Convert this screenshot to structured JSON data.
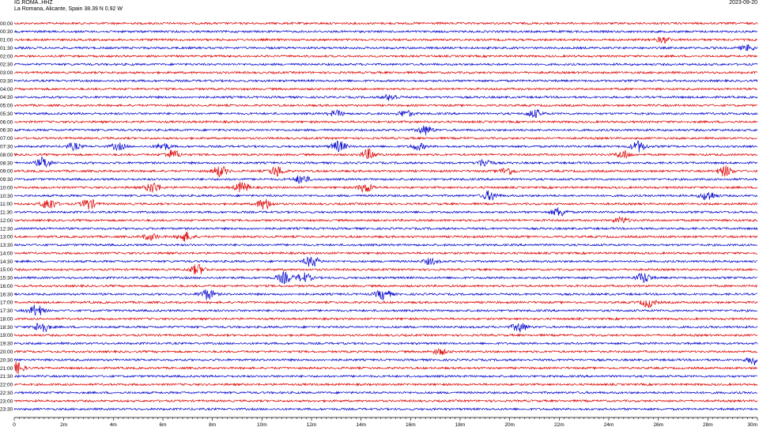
{
  "header": {
    "station": "IG.ROMA..HHZ",
    "location": "La Romana, Alicante, Spain  38.39 N 0.92 W",
    "date": "2023-09-20"
  },
  "chart_data": {
    "type": "line",
    "title": "IG.ROMA..HHZ",
    "subtitle": "La Romana, Alicante, Spain  38.39 N 0.92 W",
    "date": "2023-09-20",
    "xlabel": "",
    "ylabel": "",
    "xlim": [
      0,
      30
    ],
    "x_ticks": [
      "0",
      "2m",
      "4m",
      "6m",
      "8m",
      "10m",
      "12m",
      "14m",
      "16m",
      "18m",
      "20m",
      "22m",
      "24m",
      "26m",
      "28m",
      "30m"
    ],
    "colors": {
      "odd_hour_line": "#dd0000",
      "even_hour_line": "#0000cc"
    },
    "rows": [
      {
        "label": "00:00",
        "color": "red",
        "amplitude": 1.0,
        "bursts": []
      },
      {
        "label": "00:30",
        "color": "blue",
        "amplitude": 1.0,
        "bursts": []
      },
      {
        "label": "01:00",
        "color": "red",
        "amplitude": 1.0,
        "bursts": [
          [
            26.2,
            1.6
          ]
        ]
      },
      {
        "label": "01:30",
        "color": "blue",
        "amplitude": 1.0,
        "bursts": [
          [
            29.6,
            1.5
          ]
        ]
      },
      {
        "label": "02:00",
        "color": "red",
        "amplitude": 1.0,
        "bursts": []
      },
      {
        "label": "02:30",
        "color": "blue",
        "amplitude": 1.0,
        "bursts": []
      },
      {
        "label": "03:00",
        "color": "red",
        "amplitude": 1.0,
        "bursts": []
      },
      {
        "label": "03:30",
        "color": "blue",
        "amplitude": 1.0,
        "bursts": []
      },
      {
        "label": "04:00",
        "color": "red",
        "amplitude": 1.0,
        "bursts": []
      },
      {
        "label": "04:30",
        "color": "blue",
        "amplitude": 1.0,
        "bursts": [
          [
            15.2,
            1.8
          ]
        ]
      },
      {
        "label": "05:00",
        "color": "red",
        "amplitude": 1.0,
        "bursts": []
      },
      {
        "label": "05:30",
        "color": "blue",
        "amplitude": 1.0,
        "bursts": [
          [
            13.0,
            1.6
          ],
          [
            15.8,
            1.8
          ],
          [
            21.0,
            2.2
          ]
        ]
      },
      {
        "label": "06:00",
        "color": "red",
        "amplitude": 1.0,
        "bursts": []
      },
      {
        "label": "06:30",
        "color": "blue",
        "amplitude": 1.0,
        "bursts": [
          [
            16.6,
            2.6
          ]
        ]
      },
      {
        "label": "07:00",
        "color": "red",
        "amplitude": 1.0,
        "bursts": []
      },
      {
        "label": "07:30",
        "color": "blue",
        "amplitude": 1.0,
        "bursts": [
          [
            2.4,
            1.8
          ],
          [
            4.2,
            1.8
          ],
          [
            6.0,
            2.0
          ],
          [
            13.1,
            3.0
          ],
          [
            16.3,
            1.8
          ],
          [
            25.2,
            3.0
          ]
        ]
      },
      {
        "label": "08:00",
        "color": "red",
        "amplitude": 1.0,
        "bursts": [
          [
            6.4,
            2.5
          ],
          [
            14.3,
            2.8
          ],
          [
            24.6,
            2.2
          ]
        ]
      },
      {
        "label": "08:30",
        "color": "blue",
        "amplitude": 1.0,
        "bursts": [
          [
            1.2,
            3.0
          ],
          [
            19.0,
            2.2
          ]
        ]
      },
      {
        "label": "09:00",
        "color": "red",
        "amplitude": 1.0,
        "bursts": [
          [
            8.3,
            3.0
          ],
          [
            10.6,
            2.8
          ],
          [
            19.9,
            2.0
          ],
          [
            28.7,
            2.8
          ]
        ]
      },
      {
        "label": "09:30",
        "color": "blue",
        "amplitude": 1.0,
        "bursts": [
          [
            11.6,
            2.4
          ]
        ]
      },
      {
        "label": "10:00",
        "color": "red",
        "amplitude": 1.0,
        "bursts": [
          [
            5.6,
            3.0
          ],
          [
            9.2,
            3.0
          ],
          [
            14.2,
            2.6
          ]
        ]
      },
      {
        "label": "10:30",
        "color": "blue",
        "amplitude": 1.0,
        "bursts": [
          [
            19.2,
            2.6
          ],
          [
            28.0,
            2.6
          ]
        ]
      },
      {
        "label": "11:00",
        "color": "red",
        "amplitude": 1.0,
        "bursts": [
          [
            1.4,
            3.2
          ],
          [
            3.0,
            3.0
          ],
          [
            10.1,
            3.0
          ]
        ]
      },
      {
        "label": "11:30",
        "color": "blue",
        "amplitude": 1.0,
        "bursts": [
          [
            22.0,
            2.4
          ]
        ]
      },
      {
        "label": "12:00",
        "color": "red",
        "amplitude": 1.0,
        "bursts": [
          [
            24.5,
            1.6
          ]
        ]
      },
      {
        "label": "12:30",
        "color": "blue",
        "amplitude": 1.0,
        "bursts": []
      },
      {
        "label": "13:00",
        "color": "red",
        "amplitude": 1.0,
        "bursts": [
          [
            5.5,
            1.8
          ],
          [
            6.9,
            2.6
          ]
        ]
      },
      {
        "label": "13:30",
        "color": "blue",
        "amplitude": 1.0,
        "bursts": []
      },
      {
        "label": "14:00",
        "color": "red",
        "amplitude": 1.0,
        "bursts": []
      },
      {
        "label": "14:30",
        "color": "blue",
        "amplitude": 1.0,
        "bursts": [
          [
            12.0,
            3.0
          ],
          [
            16.8,
            1.6
          ]
        ]
      },
      {
        "label": "15:00",
        "color": "red",
        "amplitude": 1.0,
        "bursts": [
          [
            7.4,
            2.8
          ]
        ]
      },
      {
        "label": "15:30",
        "color": "blue",
        "amplitude": 1.0,
        "bursts": [
          [
            10.9,
            3.0
          ],
          [
            11.7,
            2.6
          ],
          [
            25.4,
            2.8
          ]
        ]
      },
      {
        "label": "16:00",
        "color": "red",
        "amplitude": 1.0,
        "bursts": []
      },
      {
        "label": "16:30",
        "color": "blue",
        "amplitude": 1.0,
        "bursts": [
          [
            7.8,
            3.0
          ],
          [
            14.9,
            3.0
          ]
        ]
      },
      {
        "label": "17:00",
        "color": "red",
        "amplitude": 1.0,
        "bursts": [
          [
            25.6,
            2.6
          ]
        ]
      },
      {
        "label": "17:30",
        "color": "blue",
        "amplitude": 1.0,
        "bursts": [
          [
            0.9,
            3.2
          ]
        ]
      },
      {
        "label": "18:00",
        "color": "red",
        "amplitude": 1.0,
        "bursts": []
      },
      {
        "label": "18:30",
        "color": "blue",
        "amplitude": 1.0,
        "bursts": [
          [
            1.1,
            3.2
          ],
          [
            20.4,
            2.6
          ]
        ]
      },
      {
        "label": "19:00",
        "color": "red",
        "amplitude": 1.0,
        "bursts": []
      },
      {
        "label": "19:30",
        "color": "blue",
        "amplitude": 1.0,
        "bursts": []
      },
      {
        "label": "20:00",
        "color": "red",
        "amplitude": 1.0,
        "bursts": [
          [
            17.2,
            1.5
          ]
        ]
      },
      {
        "label": "20:30",
        "color": "blue",
        "amplitude": 1.0,
        "bursts": [
          [
            29.9,
            2.6
          ]
        ]
      },
      {
        "label": "21:00",
        "color": "red",
        "amplitude": 1.0,
        "bursts": [
          [
            0.1,
            3.4
          ]
        ]
      },
      {
        "label": "21:30",
        "color": "blue",
        "amplitude": 1.0,
        "bursts": []
      },
      {
        "label": "22:00",
        "color": "red",
        "amplitude": 1.0,
        "bursts": []
      },
      {
        "label": "22:30",
        "color": "blue",
        "amplitude": 1.0,
        "bursts": []
      },
      {
        "label": "23:00",
        "color": "red",
        "amplitude": 1.0,
        "bursts": []
      },
      {
        "label": "23:30",
        "color": "blue",
        "amplitude": 1.0,
        "bursts": []
      }
    ]
  }
}
